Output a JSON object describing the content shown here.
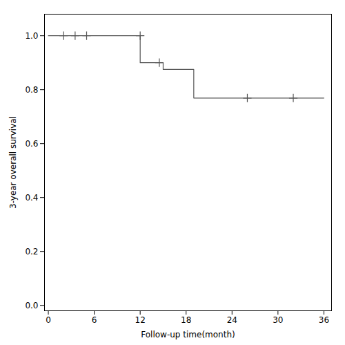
{
  "chart_data": {
    "type": "line",
    "xlabel": "Follow-up time(month)",
    "ylabel": "3-year overall survival",
    "series": [
      {
        "type": "step",
        "x": [
          0,
          12,
          12,
          15,
          15,
          19,
          19,
          36
        ],
        "values": [
          1.0,
          1.0,
          0.9,
          0.9,
          0.875,
          0.875,
          0.769,
          0.769
        ],
        "color": "#555555",
        "line_style": "solid"
      },
      {
        "type": "scatter",
        "x": [
          2,
          3.5,
          5,
          12,
          14.5,
          26,
          32
        ],
        "values": [
          1.0,
          1.0,
          1.0,
          1.0,
          0.9,
          0.769,
          0.769
        ],
        "color": "#555555",
        "marker": "plus"
      }
    ],
    "xlim": [
      -0.5,
      37
    ],
    "ylim": [
      -0.02,
      1.08
    ],
    "xticks": [
      0,
      6,
      12,
      18,
      24,
      30,
      36
    ],
    "yticks": [
      {
        "value": 0.0,
        "label": "0.0"
      },
      {
        "value": 0.2,
        "label": "0.2"
      },
      {
        "value": 0.4,
        "label": "0.4"
      },
      {
        "value": 0.6,
        "label": "0.6"
      },
      {
        "value": 0.8,
        "label": "0.8"
      },
      {
        "value": 1.0,
        "label": "1.0"
      }
    ],
    "grid": false
  }
}
